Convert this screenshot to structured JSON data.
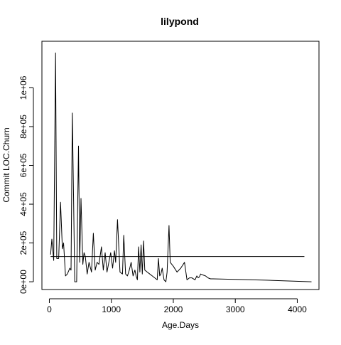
{
  "chart_data": {
    "type": "line",
    "title": "lilypond",
    "xlabel": "Age.Days",
    "ylabel": "Commit LOC.Churn",
    "xlim": [
      -120,
      4350
    ],
    "ylim": [
      -40000,
      1240000
    ],
    "x_ticks": [
      0,
      1000,
      2000,
      3000,
      4000
    ],
    "x_tick_labels": [
      "0",
      "1000",
      "2000",
      "3000",
      "4000"
    ],
    "y_ticks": [
      0,
      200000,
      400000,
      600000,
      800000,
      1000000
    ],
    "y_tick_labels": [
      "0e+00",
      "2e+05",
      "4e+05",
      "6e+05",
      "8e+05",
      "1e+06"
    ],
    "grid": false,
    "legend": "none",
    "reference_line": {
      "y": 130000
    },
    "series": [
      {
        "color": "#000000",
        "x": [
          20,
          40,
          70,
          100,
          120,
          150,
          180,
          210,
          230,
          260,
          290,
          330,
          350,
          370,
          390,
          410,
          440,
          470,
          490,
          510,
          540,
          560,
          580,
          610,
          640,
          680,
          710,
          740,
          770,
          800,
          840,
          870,
          900,
          930,
          960,
          990,
          1020,
          1050,
          1070,
          1100,
          1140,
          1180,
          1200,
          1230,
          1260,
          1290,
          1320,
          1350,
          1380,
          1400,
          1420,
          1440,
          1460,
          1480,
          1500,
          1520,
          1540,
          1580,
          1620,
          1660,
          1700,
          1740,
          1760,
          1780,
          1800,
          1820,
          1850,
          1880,
          1900,
          1930,
          1950,
          2000,
          2060,
          2120,
          2180,
          2220,
          2260,
          2300,
          2350,
          2380,
          2400,
          2420,
          2440,
          2480,
          2520,
          2560,
          2600,
          2640,
          3000,
          3500,
          4230
        ],
        "y": [
          140000,
          220000,
          110000,
          1180000,
          120000,
          120000,
          410000,
          170000,
          200000,
          30000,
          40000,
          70000,
          60000,
          870000,
          450000,
          0,
          0,
          700000,
          100000,
          430000,
          90000,
          150000,
          130000,
          40000,
          100000,
          50000,
          250000,
          60000,
          100000,
          90000,
          180000,
          60000,
          150000,
          50000,
          100000,
          150000,
          70000,
          160000,
          100000,
          320000,
          50000,
          40000,
          240000,
          40000,
          30000,
          60000,
          100000,
          30000,
          60000,
          30000,
          10000,
          180000,
          50000,
          190000,
          40000,
          210000,
          60000,
          50000,
          40000,
          30000,
          20000,
          10000,
          120000,
          30000,
          40000,
          70000,
          10000,
          0,
          50000,
          290000,
          100000,
          80000,
          50000,
          70000,
          100000,
          10000,
          20000,
          20000,
          10000,
          30000,
          20000,
          25000,
          40000,
          35000,
          30000,
          20000,
          15000,
          15000,
          12000,
          8000,
          0
        ]
      }
    ]
  }
}
